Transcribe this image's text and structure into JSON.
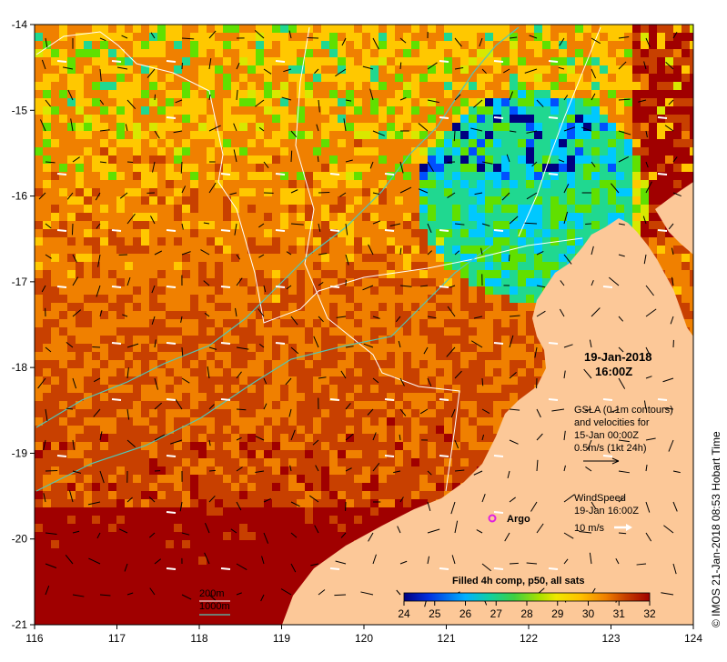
{
  "map": {
    "lon_ticks": [
      "116",
      "117",
      "118",
      "119",
      "120",
      "121",
      "122",
      "123",
      "124"
    ],
    "lat_ticks": [
      "-14",
      "-15",
      "-16",
      "-17",
      "-18",
      "-19",
      "-20",
      "-21"
    ],
    "lon_range": [
      116,
      124
    ],
    "lat_range": [
      -14,
      -21
    ],
    "land_color": "#fcc898",
    "sst_colors": [
      "#000080",
      "#0050ff",
      "#00c8ff",
      "#20d890",
      "#60e000",
      "#d8e800",
      "#ffc800",
      "#f08000",
      "#c84000",
      "#a00000"
    ]
  },
  "overlay": {
    "date": "19-Jan-2018",
    "time": "16:00Z",
    "gsla_lines": [
      "GSLA (0.1m contours)",
      "and velocities for",
      "15-Jan 00:00Z",
      "0.5m/s (1kt 24h)"
    ],
    "wind_title": "WindSpeed",
    "wind_time": "19-Jan 16:00Z",
    "wind_scale": "10 m/s",
    "argo_label": "Argo",
    "bathy_200": "200m",
    "bathy_1000": "1000m",
    "credit": "© IMOS 21-Jan-2018 08:53 Hobart Time"
  },
  "colorbar": {
    "title": "Filled 4h comp, p50, all sats",
    "ticks": [
      "24",
      "25",
      "26",
      "27",
      "28",
      "29",
      "30",
      "31",
      "32"
    ]
  }
}
